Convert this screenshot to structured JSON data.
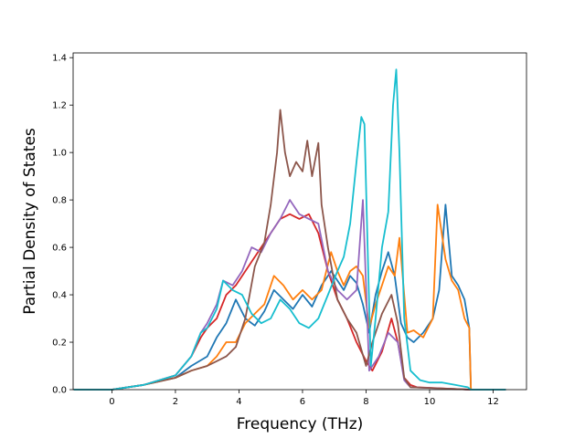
{
  "chart_data": {
    "type": "line",
    "title": "",
    "xlabel": "Frequency (THz)",
    "ylabel": "Partial Density of States",
    "xlim": [
      -1.22,
      13.05
    ],
    "ylim": [
      0.0,
      1.42
    ],
    "xticks": [
      0,
      2,
      4,
      6,
      8,
      10,
      12
    ],
    "xtick_labels": [
      "0",
      "2",
      "4",
      "6",
      "8",
      "10",
      "12"
    ],
    "yticks": [
      0.0,
      0.2,
      0.4,
      0.6,
      0.8,
      1.0,
      1.2,
      1.4
    ],
    "ytick_labels": [
      "0.0",
      "0.2",
      "0.4",
      "0.6",
      "0.8",
      "1.0",
      "1.2",
      "1.4"
    ],
    "grid": false,
    "legend": "none",
    "series": [
      {
        "color": "#1f77b4",
        "x": [
          -1.2,
          0,
          1,
          2,
          2.5,
          3,
          3.3,
          3.6,
          3.9,
          4.2,
          4.5,
          4.8,
          5.1,
          5.4,
          5.7,
          6.0,
          6.3,
          6.6,
          6.9,
          7.1,
          7.3,
          7.5,
          7.7,
          7.9,
          8.1,
          8.3,
          8.5,
          8.7,
          8.9,
          9.1,
          9.3,
          9.5,
          9.8,
          10.1,
          10.3,
          10.5,
          10.7,
          10.9,
          11.1,
          11.25,
          11.3,
          12.4
        ],
        "y": [
          0,
          0,
          0.02,
          0.05,
          0.1,
          0.14,
          0.22,
          0.28,
          0.38,
          0.3,
          0.27,
          0.33,
          0.42,
          0.38,
          0.34,
          0.4,
          0.35,
          0.44,
          0.5,
          0.46,
          0.42,
          0.48,
          0.45,
          0.36,
          0.24,
          0.4,
          0.5,
          0.58,
          0.48,
          0.28,
          0.22,
          0.2,
          0.24,
          0.3,
          0.42,
          0.78,
          0.48,
          0.44,
          0.38,
          0.26,
          0,
          0
        ]
      },
      {
        "color": "#ff7f0e",
        "x": [
          -1.2,
          0,
          1,
          2,
          2.5,
          3,
          3.3,
          3.6,
          3.9,
          4.2,
          4.5,
          4.8,
          5.1,
          5.4,
          5.7,
          6.0,
          6.3,
          6.6,
          6.9,
          7.1,
          7.3,
          7.5,
          7.7,
          7.9,
          8.1,
          8.3,
          8.5,
          8.7,
          8.9,
          9.05,
          9.3,
          9.5,
          9.8,
          10.1,
          10.25,
          10.5,
          10.7,
          10.9,
          11.1,
          11.25,
          11.3,
          12.4
        ],
        "y": [
          0,
          0,
          0.02,
          0.05,
          0.08,
          0.1,
          0.14,
          0.2,
          0.2,
          0.28,
          0.32,
          0.36,
          0.48,
          0.44,
          0.38,
          0.42,
          0.38,
          0.42,
          0.58,
          0.5,
          0.44,
          0.5,
          0.52,
          0.48,
          0.26,
          0.36,
          0.44,
          0.52,
          0.48,
          0.64,
          0.24,
          0.25,
          0.22,
          0.3,
          0.78,
          0.55,
          0.46,
          0.42,
          0.3,
          0.26,
          0,
          0
        ]
      },
      {
        "color": "#d62728",
        "x": [
          -1.2,
          0,
          1,
          2,
          2.5,
          2.8,
          3.0,
          3.3,
          3.6,
          3.9,
          4.2,
          4.5,
          4.8,
          5.1,
          5.3,
          5.6,
          5.9,
          6.2,
          6.5,
          6.8,
          7.1,
          7.4,
          7.7,
          8.0,
          8.2,
          8.5,
          8.8,
          9.0,
          9.2,
          9.4,
          9.6,
          11.3,
          12.4
        ],
        "y": [
          0,
          0,
          0.02,
          0.06,
          0.14,
          0.22,
          0.26,
          0.3,
          0.4,
          0.44,
          0.5,
          0.56,
          0.62,
          0.68,
          0.72,
          0.74,
          0.72,
          0.74,
          0.66,
          0.5,
          0.38,
          0.3,
          0.2,
          0.12,
          0.08,
          0.16,
          0.3,
          0.2,
          0.05,
          0.02,
          0.01,
          0,
          0
        ]
      },
      {
        "color": "#9467bd",
        "x": [
          -1.2,
          0,
          1,
          2,
          2.5,
          2.8,
          3.0,
          3.3,
          3.5,
          3.8,
          4.1,
          4.4,
          4.7,
          5.0,
          5.3,
          5.6,
          5.9,
          6.2,
          6.5,
          6.8,
          7.1,
          7.4,
          7.7,
          7.9,
          8.1,
          8.4,
          8.7,
          9.0,
          9.2,
          9.4,
          11.3,
          12.4
        ],
        "y": [
          0,
          0,
          0.02,
          0.06,
          0.14,
          0.24,
          0.28,
          0.36,
          0.46,
          0.44,
          0.5,
          0.6,
          0.58,
          0.66,
          0.72,
          0.8,
          0.74,
          0.72,
          0.7,
          0.5,
          0.42,
          0.38,
          0.42,
          0.8,
          0.08,
          0.14,
          0.24,
          0.2,
          0.04,
          0.01,
          0,
          0
        ]
      },
      {
        "color": "#8c564b",
        "x": [
          -1.2,
          0,
          1,
          2,
          2.5,
          3.0,
          3.3,
          3.6,
          3.9,
          4.2,
          4.5,
          4.8,
          5.0,
          5.2,
          5.3,
          5.45,
          5.6,
          5.8,
          6.0,
          6.15,
          6.3,
          6.5,
          6.6,
          6.8,
          7.1,
          7.4,
          7.7,
          8.0,
          8.2,
          8.5,
          8.8,
          9.0,
          9.2,
          9.4,
          11.3,
          12.4
        ],
        "y": [
          0,
          0,
          0.02,
          0.05,
          0.08,
          0.1,
          0.12,
          0.14,
          0.18,
          0.3,
          0.52,
          0.62,
          0.78,
          1.0,
          1.18,
          1.0,
          0.9,
          0.96,
          0.92,
          1.05,
          0.9,
          1.04,
          0.78,
          0.6,
          0.38,
          0.3,
          0.24,
          0.1,
          0.2,
          0.32,
          0.4,
          0.28,
          0.05,
          0.01,
          0,
          0
        ]
      },
      {
        "color": "#17becf",
        "x": [
          -1.2,
          0,
          1,
          2,
          2.5,
          2.8,
          3.0,
          3.3,
          3.5,
          3.8,
          4.1,
          4.4,
          4.7,
          5.0,
          5.3,
          5.6,
          5.9,
          6.2,
          6.5,
          6.8,
          7.1,
          7.3,
          7.5,
          7.7,
          7.85,
          7.95,
          8.05,
          8.15,
          8.3,
          8.5,
          8.7,
          8.85,
          8.95,
          9.05,
          9.2,
          9.4,
          9.7,
          10.0,
          10.4,
          10.8,
          11.2,
          11.3,
          12.4
        ],
        "y": [
          0,
          0,
          0.02,
          0.06,
          0.14,
          0.24,
          0.26,
          0.34,
          0.46,
          0.42,
          0.4,
          0.32,
          0.28,
          0.3,
          0.38,
          0.34,
          0.28,
          0.26,
          0.3,
          0.4,
          0.5,
          0.56,
          0.7,
          0.96,
          1.15,
          1.12,
          0.6,
          0.1,
          0.3,
          0.6,
          0.75,
          1.2,
          1.35,
          1.0,
          0.3,
          0.08,
          0.04,
          0.03,
          0.03,
          0.02,
          0.01,
          0,
          0
        ]
      }
    ]
  }
}
